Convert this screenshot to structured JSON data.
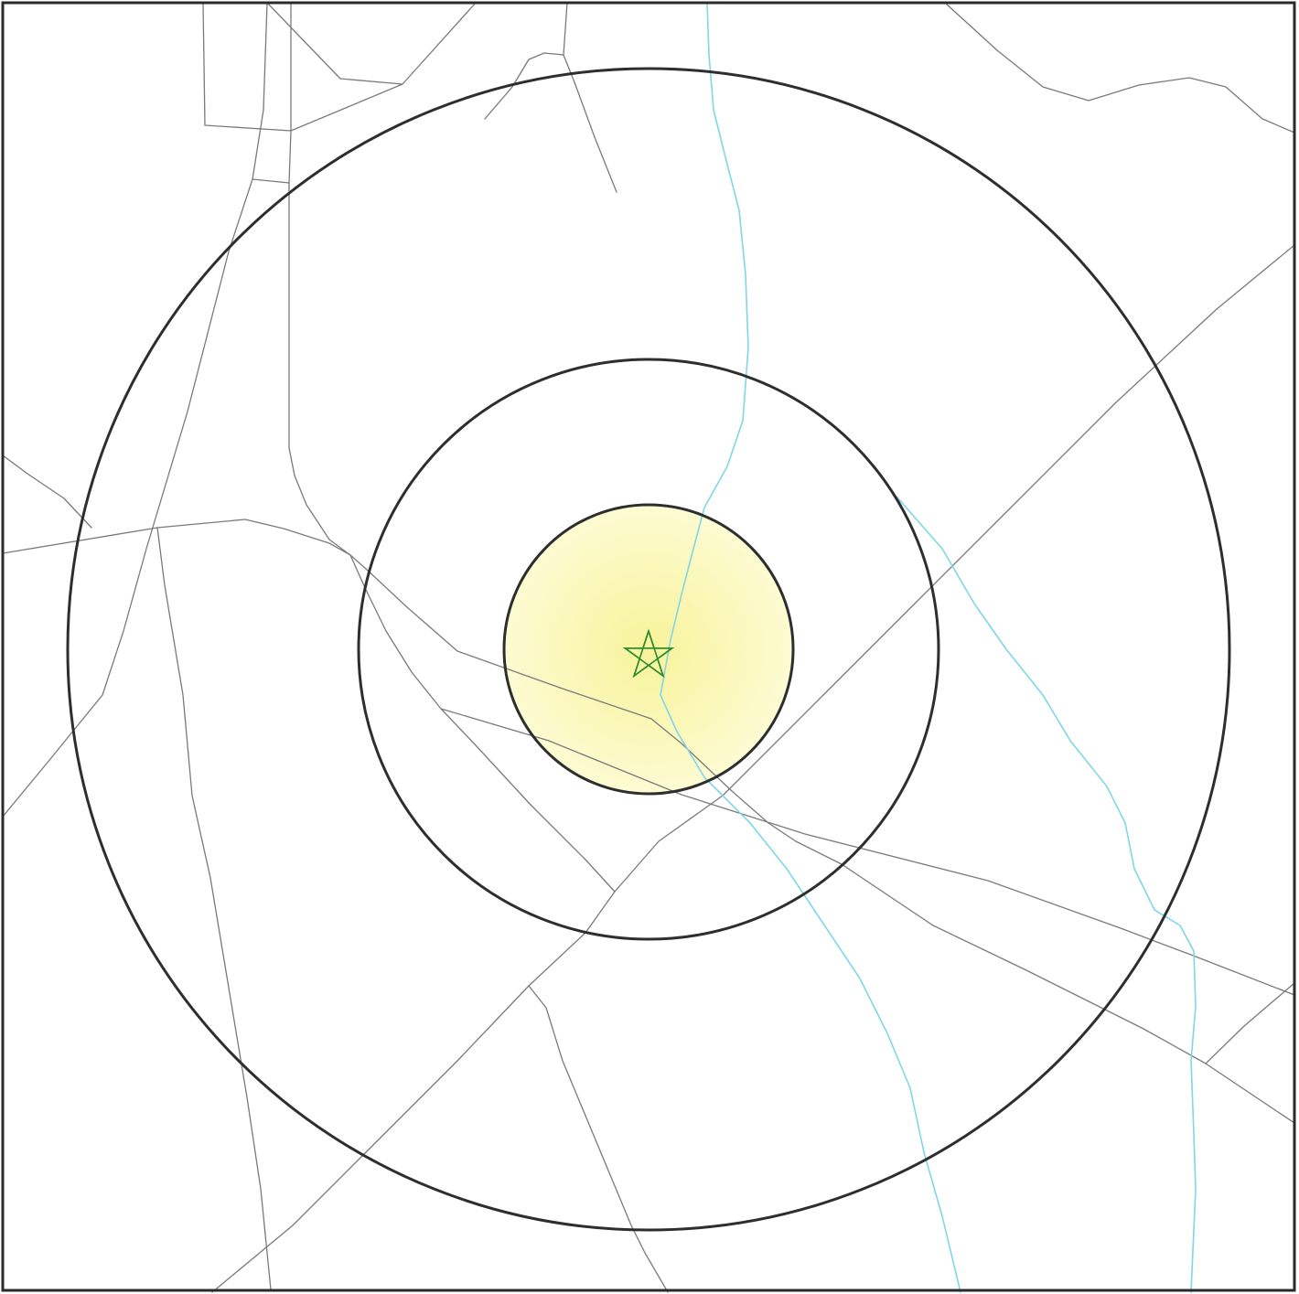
{
  "map": {
    "background_color": "#ffffff",
    "frame_color": "#2b2b2b",
    "ring_color": "#2e2e2e",
    "inner_zone_fill_color": "#fbf8b0",
    "road_color": "#7a7a7a",
    "stream_color": "#7fd6e8",
    "marker_color": "#2e8b2e",
    "marker_icon": "star-icon",
    "rings": [
      {
        "name": "inner-ring-filled",
        "filled": true
      },
      {
        "name": "middle-ring",
        "filled": false
      },
      {
        "name": "outer-ring",
        "filled": false
      }
    ]
  }
}
